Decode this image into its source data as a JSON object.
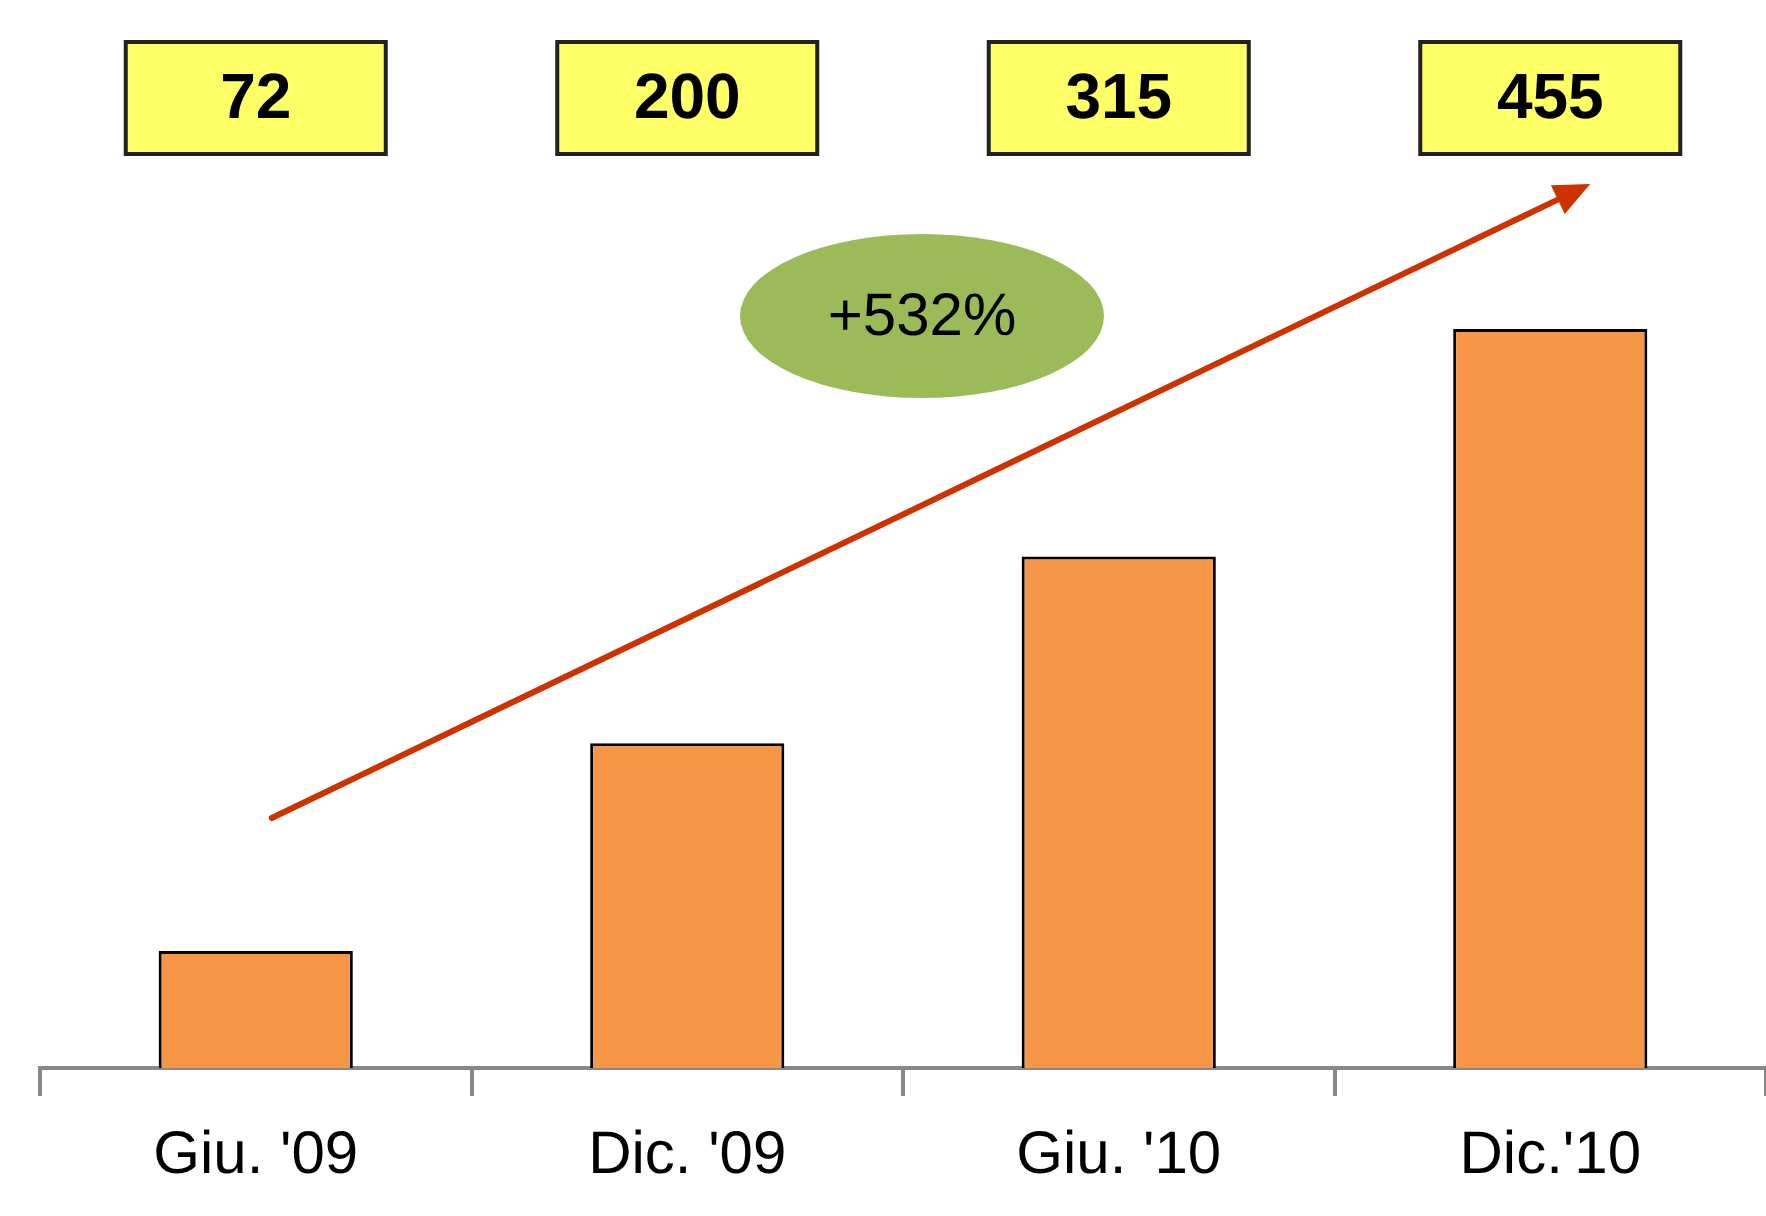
{
  "chart_data": {
    "type": "bar",
    "categories": [
      "Giu. '09",
      "Dic. '09",
      "Giu. '10",
      "Dic.'10"
    ],
    "values": [
      72,
      200,
      315,
      455
    ],
    "color": "#f79646",
    "data_labels": true,
    "annotations": [
      "+532%"
    ]
  }
}
